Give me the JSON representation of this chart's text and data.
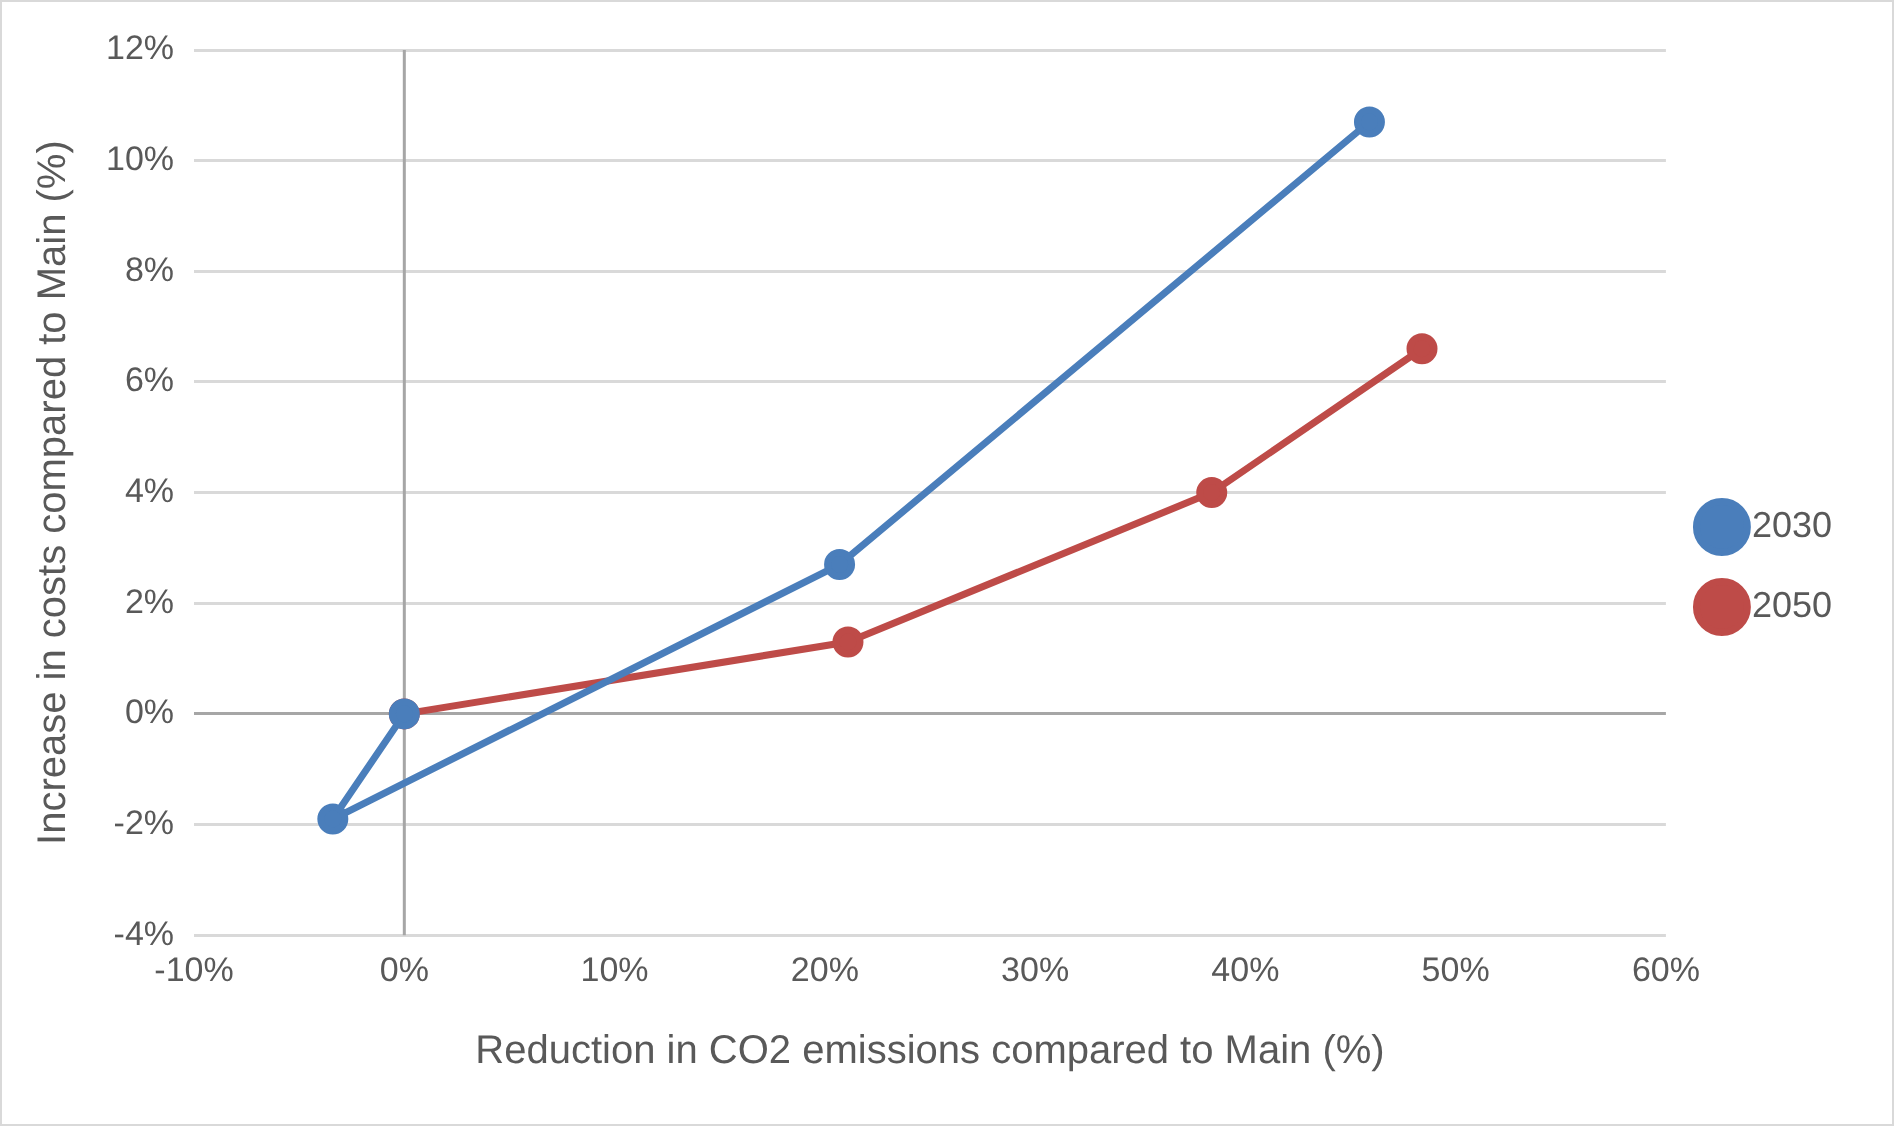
{
  "chart_data": {
    "type": "line",
    "xlabel": "Reduction in CO2 emissions compared to Main (%)",
    "ylabel": "Increase in costs compared to Main (%)",
    "series": [
      {
        "name": "2030",
        "color": "#4a7ebb",
        "x": [
          0,
          -3.4,
          20.7,
          45.9
        ],
        "values": [
          0,
          -1.9,
          2.7,
          10.7
        ]
      },
      {
        "name": "2050",
        "color": "#be4b48",
        "x": [
          0,
          21.1,
          38.4,
          48.4
        ],
        "values": [
          0,
          1.3,
          4.0,
          6.6
        ]
      }
    ],
    "xlim": [
      -10,
      60
    ],
    "xticks": [
      {
        "value": -10,
        "label": "-10%"
      },
      {
        "value": 0,
        "label": "0%"
      },
      {
        "value": 10,
        "label": "10%"
      },
      {
        "value": 20,
        "label": "20%"
      },
      {
        "value": 30,
        "label": "30%"
      },
      {
        "value": 40,
        "label": "40%"
      },
      {
        "value": 50,
        "label": "50%"
      },
      {
        "value": 60,
        "label": "60%"
      }
    ],
    "ylim": [
      -4,
      12
    ],
    "yticks": [
      {
        "value": -4,
        "label": "-4%"
      },
      {
        "value": -2,
        "label": "-2%"
      },
      {
        "value": 0,
        "label": "0%"
      },
      {
        "value": 2,
        "label": "2%"
      },
      {
        "value": 4,
        "label": "4%"
      },
      {
        "value": 6,
        "label": "6%"
      },
      {
        "value": 8,
        "label": "8%"
      },
      {
        "value": 10,
        "label": "10%"
      },
      {
        "value": 12,
        "label": "12%"
      }
    ],
    "ref_lines": [
      {
        "axis": "x",
        "value": 0,
        "color": "#a6a6a6"
      }
    ],
    "grid": "y",
    "legend": "right",
    "marker": "circle",
    "line_style": "solid"
  }
}
